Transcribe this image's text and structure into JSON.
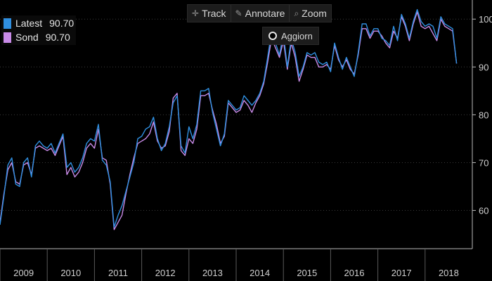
{
  "toolbar": {
    "track_label": "Track",
    "annotate_label": "Annotare",
    "zoom_label": "Zoom",
    "refresh_label": "Aggiorn"
  },
  "colors": {
    "background": "#000000",
    "latest": "#2f8fe0",
    "sond": "#c98be8",
    "grid": "#3a3a3a",
    "axis_text": "#d0d0d0"
  },
  "chart_data": {
    "type": "line",
    "x_axis": {
      "type": "time",
      "range": [
        "2009-01",
        "2018-12"
      ],
      "tick_labels": [
        "2009",
        "2010",
        "2011",
        "2012",
        "2013",
        "2014",
        "2015",
        "2016",
        "2017",
        "2018"
      ]
    },
    "y_axis": {
      "position": "right",
      "range": [
        52,
        104
      ],
      "ticks": [
        60,
        70,
        80,
        90,
        100
      ],
      "tick_labels": [
        "60",
        "70",
        "80",
        "90",
        "100"
      ]
    },
    "grid": "dotted",
    "legend_position": "top-left",
    "series": [
      {
        "name": "Latest",
        "color": "#2f8fe0",
        "last_value": "90.70",
        "points": [
          [
            "2009-01",
            57.0
          ],
          [
            "2009-02",
            63.0
          ],
          [
            "2009-03",
            69.5
          ],
          [
            "2009-04",
            71.0
          ],
          [
            "2009-05",
            65.5
          ],
          [
            "2009-06",
            65.0
          ],
          [
            "2009-07",
            70.0
          ],
          [
            "2009-08",
            71.0
          ],
          [
            "2009-09",
            67.0
          ],
          [
            "2009-10",
            73.5
          ],
          [
            "2009-11",
            74.5
          ],
          [
            "2009-12",
            73.5
          ],
          [
            "2010-01",
            73.0
          ],
          [
            "2010-02",
            74.0
          ],
          [
            "2010-03",
            72.0
          ],
          [
            "2010-04",
            74.0
          ],
          [
            "2010-05",
            76.0
          ],
          [
            "2010-06",
            69.0
          ],
          [
            "2010-07",
            70.0
          ],
          [
            "2010-08",
            68.0
          ],
          [
            "2010-09",
            69.0
          ],
          [
            "2010-10",
            71.0
          ],
          [
            "2010-11",
            74.0
          ],
          [
            "2010-12",
            75.0
          ],
          [
            "2011-01",
            74.5
          ],
          [
            "2011-02",
            78.0
          ],
          [
            "2011-03",
            70.5
          ],
          [
            "2011-04",
            69.5
          ],
          [
            "2011-05",
            66.0
          ],
          [
            "2011-06",
            56.5
          ],
          [
            "2011-07",
            59.0
          ],
          [
            "2011-08",
            61.0
          ],
          [
            "2011-09",
            64.0
          ],
          [
            "2011-10",
            67.0
          ],
          [
            "2011-11",
            70.0
          ],
          [
            "2011-12",
            75.0
          ],
          [
            "2012-01",
            75.5
          ],
          [
            "2012-02",
            77.0
          ],
          [
            "2012-03",
            77.5
          ],
          [
            "2012-04",
            79.5
          ],
          [
            "2012-05",
            75.0
          ],
          [
            "2012-06",
            72.5
          ],
          [
            "2012-07",
            74.0
          ],
          [
            "2012-08",
            77.5
          ],
          [
            "2012-09",
            82.5
          ],
          [
            "2012-10",
            84.0
          ],
          [
            "2012-11",
            73.5
          ],
          [
            "2012-12",
            72.0
          ],
          [
            "2013-01",
            77.5
          ],
          [
            "2013-02",
            75.0
          ],
          [
            "2013-03",
            78.0
          ],
          [
            "2013-04",
            85.0
          ],
          [
            "2013-05",
            85.0
          ],
          [
            "2013-06",
            85.5
          ],
          [
            "2013-07",
            80.5
          ],
          [
            "2013-08",
            77.0
          ],
          [
            "2013-09",
            73.5
          ],
          [
            "2013-10",
            76.0
          ],
          [
            "2013-11",
            83.0
          ],
          [
            "2013-12",
            82.0
          ],
          [
            "2014-01",
            81.0
          ],
          [
            "2014-02",
            81.5
          ],
          [
            "2014-03",
            84.0
          ],
          [
            "2014-04",
            83.0
          ],
          [
            "2014-05",
            82.0
          ],
          [
            "2014-06",
            83.0
          ],
          [
            "2014-07",
            84.5
          ],
          [
            "2014-08",
            87.0
          ],
          [
            "2014-09",
            92.0
          ],
          [
            "2014-10",
            97.5
          ],
          [
            "2014-11",
            95.0
          ],
          [
            "2014-12",
            92.5
          ],
          [
            "2015-01",
            97.0
          ],
          [
            "2015-02",
            90.0
          ],
          [
            "2015-03",
            96.0
          ],
          [
            "2015-04",
            93.0
          ],
          [
            "2015-05",
            88.0
          ],
          [
            "2015-06",
            90.0
          ],
          [
            "2015-07",
            93.0
          ],
          [
            "2015-08",
            92.5
          ],
          [
            "2015-09",
            93.0
          ],
          [
            "2015-10",
            91.0
          ],
          [
            "2015-11",
            90.5
          ],
          [
            "2015-12",
            91.0
          ],
          [
            "2016-01",
            89.0
          ],
          [
            "2016-02",
            95.0
          ],
          [
            "2016-03",
            92.0
          ],
          [
            "2016-04",
            89.5
          ],
          [
            "2016-05",
            92.0
          ],
          [
            "2016-06",
            90.0
          ],
          [
            "2016-07",
            88.0
          ],
          [
            "2016-08",
            93.0
          ],
          [
            "2016-09",
            99.0
          ],
          [
            "2016-10",
            99.0
          ],
          [
            "2016-11",
            96.5
          ],
          [
            "2016-12",
            98.0
          ],
          [
            "2017-01",
            98.0
          ],
          [
            "2017-02",
            96.0
          ],
          [
            "2017-03",
            95.5
          ],
          [
            "2017-04",
            94.5
          ],
          [
            "2017-05",
            98.5
          ],
          [
            "2017-06",
            95.5
          ],
          [
            "2017-07",
            101.0
          ],
          [
            "2017-08",
            99.0
          ],
          [
            "2017-09",
            96.0
          ],
          [
            "2017-10",
            99.5
          ],
          [
            "2017-11",
            102.0
          ],
          [
            "2017-12",
            99.5
          ],
          [
            "2018-01",
            98.5
          ],
          [
            "2018-02",
            99.0
          ],
          [
            "2018-03",
            98.5
          ],
          [
            "2018-04",
            96.0
          ],
          [
            "2018-05",
            100.5
          ],
          [
            "2018-06",
            99.0
          ],
          [
            "2018-07",
            98.5
          ],
          [
            "2018-08",
            98.0
          ],
          [
            "2018-09",
            90.7
          ]
        ]
      },
      {
        "name": "Sond",
        "color": "#c98be8",
        "last_value": "90.70",
        "points": [
          [
            "2009-01",
            57.5
          ],
          [
            "2009-02",
            63.5
          ],
          [
            "2009-03",
            68.5
          ],
          [
            "2009-04",
            70.0
          ],
          [
            "2009-05",
            66.0
          ],
          [
            "2009-06",
            65.5
          ],
          [
            "2009-07",
            69.5
          ],
          [
            "2009-08",
            70.0
          ],
          [
            "2009-09",
            67.5
          ],
          [
            "2009-10",
            73.0
          ],
          [
            "2009-11",
            73.5
          ],
          [
            "2009-12",
            73.0
          ],
          [
            "2010-01",
            72.5
          ],
          [
            "2010-02",
            73.0
          ],
          [
            "2010-03",
            71.5
          ],
          [
            "2010-04",
            73.5
          ],
          [
            "2010-05",
            75.5
          ],
          [
            "2010-06",
            67.5
          ],
          [
            "2010-07",
            69.0
          ],
          [
            "2010-08",
            67.0
          ],
          [
            "2010-09",
            68.0
          ],
          [
            "2010-10",
            70.0
          ],
          [
            "2010-11",
            73.0
          ],
          [
            "2010-12",
            74.0
          ],
          [
            "2011-01",
            73.0
          ],
          [
            "2011-02",
            77.0
          ],
          [
            "2011-03",
            71.0
          ],
          [
            "2011-04",
            70.5
          ],
          [
            "2011-05",
            65.5
          ],
          [
            "2011-06",
            56.0
          ],
          [
            "2011-07",
            57.5
          ],
          [
            "2011-08",
            59.0
          ],
          [
            "2011-09",
            63.5
          ],
          [
            "2011-10",
            67.5
          ],
          [
            "2011-11",
            71.0
          ],
          [
            "2011-12",
            74.0
          ],
          [
            "2012-01",
            74.5
          ],
          [
            "2012-02",
            75.0
          ],
          [
            "2012-03",
            76.0
          ],
          [
            "2012-04",
            78.5
          ],
          [
            "2012-05",
            74.5
          ],
          [
            "2012-06",
            73.0
          ],
          [
            "2012-07",
            73.5
          ],
          [
            "2012-08",
            76.5
          ],
          [
            "2012-09",
            83.5
          ],
          [
            "2012-10",
            84.5
          ],
          [
            "2012-11",
            72.5
          ],
          [
            "2012-12",
            71.5
          ],
          [
            "2013-01",
            75.0
          ],
          [
            "2013-02",
            74.0
          ],
          [
            "2013-03",
            77.0
          ],
          [
            "2013-04",
            84.0
          ],
          [
            "2013-05",
            84.0
          ],
          [
            "2013-06",
            84.5
          ],
          [
            "2013-07",
            81.0
          ],
          [
            "2013-08",
            78.0
          ],
          [
            "2013-09",
            74.0
          ],
          [
            "2013-10",
            75.5
          ],
          [
            "2013-11",
            82.5
          ],
          [
            "2013-12",
            81.5
          ],
          [
            "2014-01",
            80.5
          ],
          [
            "2014-02",
            81.0
          ],
          [
            "2014-03",
            83.0
          ],
          [
            "2014-04",
            82.0
          ],
          [
            "2014-05",
            80.5
          ],
          [
            "2014-06",
            82.5
          ],
          [
            "2014-07",
            84.0
          ],
          [
            "2014-08",
            86.5
          ],
          [
            "2014-09",
            91.0
          ],
          [
            "2014-10",
            96.0
          ],
          [
            "2014-11",
            94.0
          ],
          [
            "2014-12",
            92.0
          ],
          [
            "2015-01",
            95.5
          ],
          [
            "2015-02",
            89.5
          ],
          [
            "2015-03",
            95.0
          ],
          [
            "2015-04",
            92.0
          ],
          [
            "2015-05",
            87.0
          ],
          [
            "2015-06",
            89.5
          ],
          [
            "2015-07",
            92.5
          ],
          [
            "2015-08",
            92.0
          ],
          [
            "2015-09",
            92.0
          ],
          [
            "2015-10",
            90.0
          ],
          [
            "2015-11",
            90.0
          ],
          [
            "2015-12",
            90.5
          ],
          [
            "2016-01",
            89.5
          ],
          [
            "2016-02",
            94.5
          ],
          [
            "2016-03",
            91.5
          ],
          [
            "2016-04",
            90.0
          ],
          [
            "2016-05",
            91.5
          ],
          [
            "2016-06",
            89.5
          ],
          [
            "2016-07",
            88.5
          ],
          [
            "2016-08",
            92.5
          ],
          [
            "2016-09",
            98.0
          ],
          [
            "2016-10",
            98.0
          ],
          [
            "2016-11",
            96.0
          ],
          [
            "2016-12",
            97.5
          ],
          [
            "2017-01",
            97.5
          ],
          [
            "2017-02",
            96.5
          ],
          [
            "2017-03",
            95.0
          ],
          [
            "2017-04",
            94.0
          ],
          [
            "2017-05",
            97.5
          ],
          [
            "2017-06",
            96.0
          ],
          [
            "2017-07",
            100.5
          ],
          [
            "2017-08",
            98.5
          ],
          [
            "2017-09",
            95.5
          ],
          [
            "2017-10",
            99.0
          ],
          [
            "2017-11",
            101.5
          ],
          [
            "2017-12",
            98.5
          ],
          [
            "2018-01",
            98.0
          ],
          [
            "2018-02",
            98.5
          ],
          [
            "2018-03",
            97.0
          ],
          [
            "2018-04",
            95.5
          ],
          [
            "2018-05",
            100.0
          ],
          [
            "2018-06",
            98.5
          ],
          [
            "2018-07",
            98.0
          ],
          [
            "2018-08",
            97.5
          ],
          [
            "2018-09",
            90.7
          ]
        ]
      }
    ]
  }
}
